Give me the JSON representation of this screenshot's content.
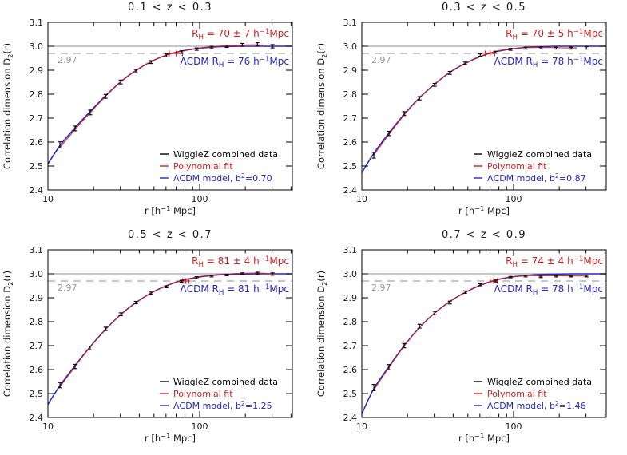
{
  "figure": {
    "colors": {
      "data_black": "#000000",
      "fit_red": "#cc2222",
      "model_blue": "#2525c8",
      "reference_gray": "#8c8c8c",
      "label_gray": "#999999",
      "background": "#ffffff"
    },
    "xlabel": "r [h^{−1} Mpc]",
    "ylabel": "Correlation dimension D_{2}(r)"
  },
  "chart_data": [
    {
      "type": "line",
      "title": "0.1 < z < 0.3",
      "xlabel": "r [h^{−1} Mpc]",
      "ylabel": "Correlation dimension D_{2}(r)",
      "axes": {
        "xscale": "log",
        "xlim": [
          10,
          408
        ],
        "ylim": [
          2.4,
          3.1
        ],
        "x_major_ticks": [
          10,
          100
        ],
        "x_major_labels": [
          "10",
          "100"
        ],
        "x_minor_ticks": [
          20,
          30,
          40,
          50,
          60,
          70,
          80,
          90,
          200,
          300,
          400
        ],
        "y_ticks": [
          2.4,
          2.5,
          2.6,
          2.7,
          2.8,
          2.9,
          3.0,
          3.1
        ]
      },
      "reference": {
        "solid_line": 3.0,
        "dashed_line": 2.97,
        "dashed_label": "2.97"
      },
      "annotations": {
        "red": "R_{H} = 70 ± 7 h^{−1}Mpc",
        "blue": "ΛCDM R_{H} = 76 h^{−1}Mpc"
      },
      "red_errorbar": {
        "r": 70,
        "err": 7,
        "y": 2.97
      },
      "legend": [
        {
          "label": "WiggleZ combined data",
          "color": "#000000"
        },
        {
          "label": "Polynomial fit",
          "color": "#cc2222"
        },
        {
          "label": "ΛCDM model, b^{2}=0.70",
          "color": "#2525c8"
        }
      ],
      "series": {
        "data_points": {
          "r": [
            12.0,
            15.1,
            19.0,
            24.0,
            30.2,
            38.0,
            47.9,
            60.3,
            75.9,
            95.5,
            120,
            151,
            191,
            240,
            302
          ],
          "d2": [
            2.588,
            2.657,
            2.724,
            2.791,
            2.851,
            2.896,
            2.934,
            2.962,
            2.976,
            2.988,
            2.995,
            3.0,
            3.006,
            3.009,
            3.0
          ],
          "err": [
            0.013,
            0.01,
            0.01,
            0.008,
            0.008,
            0.007,
            0.006,
            0.006,
            0.005,
            0.005,
            0.005,
            0.005,
            0.006,
            0.006,
            0.007
          ]
        },
        "model_curve": {
          "r": [
            10,
            12,
            15.1,
            19,
            24,
            30.2,
            38,
            47.9,
            60.3,
            75.9,
            95.5,
            120,
            151,
            191,
            240,
            302,
            408
          ],
          "d2": [
            2.509,
            2.585,
            2.66,
            2.728,
            2.794,
            2.852,
            2.899,
            2.936,
            2.963,
            2.98,
            2.99,
            2.996,
            2.999,
            3.0,
            3.0,
            3.0,
            3.0
          ]
        },
        "poly_fit": {
          "r": [
            12,
            15.1,
            19,
            24,
            30.2,
            38,
            47.9,
            60.3,
            75.9,
            95.5,
            120,
            151,
            191,
            240,
            262
          ],
          "d2": [
            2.577,
            2.653,
            2.723,
            2.791,
            2.851,
            2.898,
            2.936,
            2.963,
            2.98,
            2.991,
            2.998,
            3.002,
            3.005,
            3.006,
            3.005
          ]
        }
      }
    },
    {
      "type": "line",
      "title": "0.3 < z < 0.5",
      "xlabel": "r [h^{−1} Mpc]",
      "ylabel": "Correlation dimension D_{2}(r)",
      "axes": {
        "xscale": "log",
        "xlim": [
          10,
          408
        ],
        "ylim": [
          2.4,
          3.1
        ],
        "x_major_ticks": [
          10,
          100
        ],
        "x_major_labels": [
          "10",
          "100"
        ],
        "x_minor_ticks": [
          20,
          30,
          40,
          50,
          60,
          70,
          80,
          90,
          200,
          300,
          400
        ],
        "y_ticks": [
          2.4,
          2.5,
          2.6,
          2.7,
          2.8,
          2.9,
          3.0,
          3.1
        ]
      },
      "reference": {
        "solid_line": 3.0,
        "dashed_line": 2.97,
        "dashed_label": "2.97"
      },
      "annotations": {
        "red": "R_{H} = 70 ± 5 h^{−1}Mpc",
        "blue": "ΛCDM R_{H} = 78 h^{−1}Mpc"
      },
      "red_errorbar": {
        "r": 70,
        "err": 5,
        "y": 2.97
      },
      "legend": [
        {
          "label": "WiggleZ combined data",
          "color": "#000000"
        },
        {
          "label": "Polynomial fit",
          "color": "#cc2222"
        },
        {
          "label": "ΛCDM model, b^{2}=0.87",
          "color": "#2525c8"
        }
      ],
      "series": {
        "data_points": {
          "r": [
            12.0,
            15.1,
            19.0,
            24.0,
            30.2,
            38.0,
            47.9,
            60.3,
            75.9,
            95.5,
            120,
            151,
            191,
            240,
            302
          ],
          "d2": [
            2.545,
            2.636,
            2.719,
            2.783,
            2.839,
            2.889,
            2.929,
            2.963,
            2.975,
            2.987,
            2.992,
            2.993,
            2.992,
            2.992,
            2.993
          ],
          "err": [
            0.012,
            0.009,
            0.008,
            0.007,
            0.006,
            0.006,
            0.005,
            0.005,
            0.004,
            0.004,
            0.004,
            0.004,
            0.004,
            0.004,
            0.005
          ]
        },
        "model_curve": {
          "r": [
            10,
            12,
            15.1,
            19,
            24,
            30.2,
            38,
            47.9,
            60.3,
            75.9,
            95.5,
            120,
            151,
            191,
            240,
            302,
            408
          ],
          "d2": [
            2.472,
            2.553,
            2.638,
            2.716,
            2.785,
            2.842,
            2.891,
            2.928,
            2.957,
            2.977,
            2.988,
            2.995,
            2.998,
            3.0,
            3.0,
            3.0,
            3.0
          ]
        },
        "poly_fit": {
          "r": [
            12,
            15.1,
            19,
            24,
            30.2,
            38,
            47.9,
            60.3,
            75.9,
            95.5,
            120,
            151,
            191,
            240,
            262
          ],
          "d2": [
            2.546,
            2.632,
            2.713,
            2.784,
            2.841,
            2.89,
            2.928,
            2.958,
            2.978,
            2.989,
            2.994,
            2.995,
            2.994,
            2.993,
            2.993
          ]
        }
      }
    },
    {
      "type": "line",
      "title": "0.5 < z < 0.7",
      "xlabel": "r [h^{−1} Mpc]",
      "ylabel": "Correlation dimension D_{2}(r)",
      "axes": {
        "xscale": "log",
        "xlim": [
          10,
          408
        ],
        "ylim": [
          2.4,
          3.1
        ],
        "x_major_ticks": [
          10,
          100
        ],
        "x_major_labels": [
          "10",
          "100"
        ],
        "x_minor_ticks": [
          20,
          30,
          40,
          50,
          60,
          70,
          80,
          90,
          200,
          300,
          400
        ],
        "y_ticks": [
          2.4,
          2.5,
          2.6,
          2.7,
          2.8,
          2.9,
          3.0,
          3.1
        ]
      },
      "reference": {
        "solid_line": 3.0,
        "dashed_line": 2.97,
        "dashed_label": "2.97"
      },
      "annotations": {
        "red": "R_{H} = 81 ± 4 h^{−1}Mpc",
        "blue": "ΛCDM R_{H} = 81 h^{−1}Mpc"
      },
      "red_errorbar": {
        "r": 81,
        "err": 4,
        "y": 2.97
      },
      "legend": [
        {
          "label": "WiggleZ combined data",
          "color": "#000000"
        },
        {
          "label": "Polynomial fit",
          "color": "#cc2222"
        },
        {
          "label": "ΛCDM model, b^{2}=1.25",
          "color": "#2525c8"
        }
      ],
      "series": {
        "data_points": {
          "r": [
            12.0,
            15.1,
            19.0,
            24.0,
            30.2,
            38.0,
            47.9,
            60.3,
            75.9,
            95.5,
            120,
            151,
            191,
            240,
            302
          ],
          "d2": [
            2.535,
            2.613,
            2.69,
            2.77,
            2.831,
            2.88,
            2.919,
            2.946,
            2.969,
            2.984,
            2.99,
            2.995,
            3.001,
            3.003,
            2.999
          ],
          "err": [
            0.011,
            0.009,
            0.008,
            0.007,
            0.006,
            0.005,
            0.005,
            0.004,
            0.004,
            0.004,
            0.003,
            0.003,
            0.003,
            0.004,
            0.005
          ]
        },
        "model_curve": {
          "r": [
            10,
            12,
            15.1,
            19,
            24,
            30.2,
            38,
            47.9,
            60.3,
            75.9,
            95.5,
            120,
            151,
            191,
            240,
            302,
            408
          ],
          "d2": [
            2.455,
            2.533,
            2.617,
            2.696,
            2.768,
            2.83,
            2.88,
            2.92,
            2.95,
            2.972,
            2.985,
            2.993,
            2.997,
            2.999,
            3.0,
            3.0,
            3.0
          ]
        },
        "poly_fit": {
          "r": [
            12,
            15.1,
            19,
            24,
            30.2,
            38,
            47.9,
            60.3,
            75.9,
            95.5,
            120,
            151,
            191,
            240,
            310
          ],
          "d2": [
            2.528,
            2.613,
            2.694,
            2.767,
            2.829,
            2.879,
            2.92,
            2.95,
            2.972,
            2.986,
            2.994,
            2.999,
            3.002,
            3.003,
            3.0
          ]
        }
      }
    },
    {
      "type": "line",
      "title": "0.7 < z < 0.9",
      "xlabel": "r [h^{−1} Mpc]",
      "ylabel": "Correlation dimension D_{2}(r)",
      "axes": {
        "xscale": "log",
        "xlim": [
          10,
          408
        ],
        "ylim": [
          2.4,
          3.1
        ],
        "x_major_ticks": [
          10,
          100
        ],
        "x_major_labels": [
          "10",
          "100"
        ],
        "x_minor_ticks": [
          20,
          30,
          40,
          50,
          60,
          70,
          80,
          90,
          200,
          300,
          400
        ],
        "y_ticks": [
          2.4,
          2.5,
          2.6,
          2.7,
          2.8,
          2.9,
          3.0,
          3.1
        ]
      },
      "reference": {
        "solid_line": 3.0,
        "dashed_line": 2.97,
        "dashed_label": "2.97"
      },
      "annotations": {
        "red": "R_{H} = 74 ± 4 h^{−1}Mpc",
        "blue": "ΛCDM R_{H} = 78 h^{−1}Mpc"
      },
      "red_errorbar": {
        "r": 74,
        "err": 4,
        "y": 2.97
      },
      "legend": [
        {
          "label": "WiggleZ combined data",
          "color": "#000000"
        },
        {
          "label": "Polynomial fit",
          "color": "#cc2222"
        },
        {
          "label": "ΛCDM model, b^{2}=1.46",
          "color": "#2525c8"
        }
      ],
      "series": {
        "data_points": {
          "r": [
            12.0,
            15.1,
            19.0,
            24.0,
            30.2,
            38.0,
            47.9,
            60.3,
            75.9,
            95.5,
            120,
            151,
            191,
            240,
            302
          ],
          "d2": [
            2.525,
            2.61,
            2.7,
            2.781,
            2.836,
            2.88,
            2.924,
            2.954,
            2.97,
            2.986,
            2.99,
            2.987,
            2.99,
            2.99,
            2.991
          ],
          "err": [
            0.013,
            0.011,
            0.009,
            0.008,
            0.007,
            0.006,
            0.005,
            0.004,
            0.004,
            0.003,
            0.003,
            0.003,
            0.003,
            0.003,
            0.004
          ]
        },
        "model_curve": {
          "r": [
            10,
            12,
            15.1,
            19,
            24,
            30.2,
            38,
            47.9,
            60.3,
            75.9,
            95.5,
            120,
            151,
            191,
            240,
            302,
            408
          ],
          "d2": [
            2.415,
            2.52,
            2.613,
            2.7,
            2.776,
            2.836,
            2.884,
            2.922,
            2.952,
            2.973,
            2.986,
            2.993,
            2.997,
            2.999,
            3.0,
            3.0,
            3.0
          ]
        },
        "poly_fit": {
          "r": [
            12,
            15.1,
            19,
            24,
            30.2,
            38,
            47.9,
            60.3,
            75.9,
            95.5,
            120,
            151,
            191,
            240,
            310
          ],
          "d2": [
            2.515,
            2.609,
            2.698,
            2.775,
            2.836,
            2.884,
            2.923,
            2.953,
            2.974,
            2.987,
            2.992,
            2.992,
            2.992,
            2.991,
            2.991
          ]
        }
      }
    }
  ]
}
